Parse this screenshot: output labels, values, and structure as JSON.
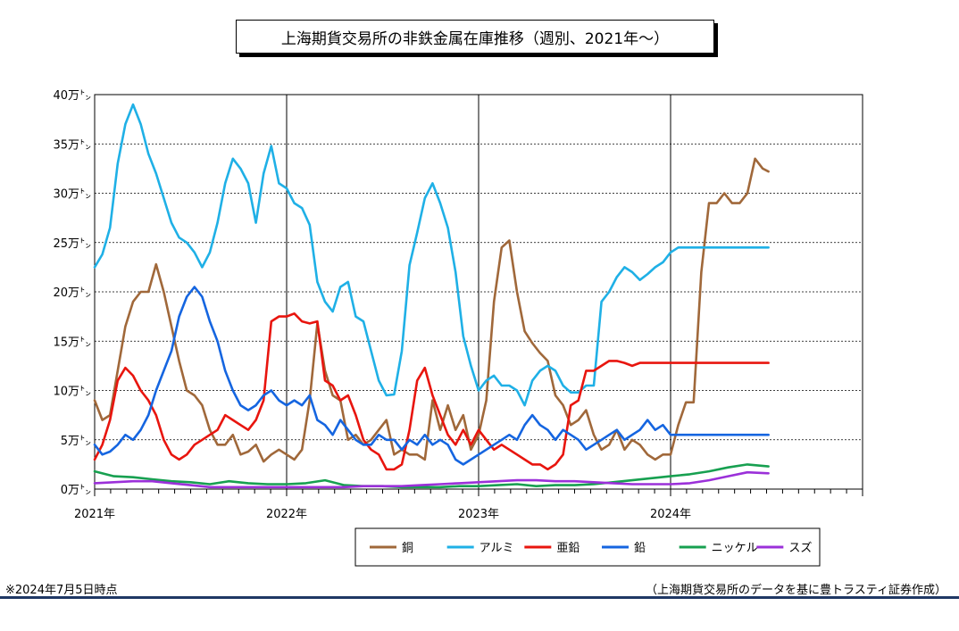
{
  "chart_data": {
    "type": "line",
    "title": "上海期貨交易所の非鉄金属在庫推移（週別、2021年～）",
    "x_labels": [
      "2021年",
      "2022年",
      "2023年",
      "2024年"
    ],
    "x_range": [
      2021.0,
      2025.0
    ],
    "y_ticks": [
      "0万㌧",
      "5万㌧",
      "10万㌧",
      "15万㌧",
      "20万㌧",
      "25万㌧",
      "30万㌧",
      "35万㌧",
      "40万㌧"
    ],
    "ylim": [
      0,
      40
    ],
    "y_unit": "万トン",
    "grid": "horizontal dashed, vertical solid at year boundaries",
    "legend_position": "bottom-right",
    "series": [
      {
        "name": "銅",
        "color": "#a0683a",
        "x": [
          2021.0,
          2021.04,
          2021.08,
          2021.12,
          2021.16,
          2021.2,
          2021.24,
          2021.28,
          2021.32,
          2021.36,
          2021.4,
          2021.44,
          2021.48,
          2021.52,
          2021.56,
          2021.6,
          2021.64,
          2021.68,
          2021.72,
          2021.76,
          2021.8,
          2021.84,
          2021.88,
          2021.92,
          2021.96,
          2022.0,
          2022.04,
          2022.08,
          2022.12,
          2022.16,
          2022.2,
          2022.24,
          2022.28,
          2022.32,
          2022.36,
          2022.4,
          2022.44,
          2022.48,
          2022.52,
          2022.56,
          2022.6,
          2022.64,
          2022.68,
          2022.72,
          2022.76,
          2022.8,
          2022.84,
          2022.88,
          2022.92,
          2022.96,
          2023.0,
          2023.04,
          2023.08,
          2023.12,
          2023.16,
          2023.2,
          2023.24,
          2023.28,
          2023.32,
          2023.36,
          2023.4,
          2023.44,
          2023.48,
          2023.52,
          2023.56,
          2023.6,
          2023.64,
          2023.68,
          2023.72,
          2023.76,
          2023.8,
          2023.84,
          2023.88,
          2023.92,
          2023.96,
          2024.0,
          2024.04,
          2024.08,
          2024.12,
          2024.16,
          2024.2,
          2024.24,
          2024.28,
          2024.32,
          2024.36,
          2024.4,
          2024.44,
          2024.48,
          2024.51
        ],
        "y": [
          9.0,
          7.0,
          7.5,
          12.0,
          16.5,
          19.0,
          20.0,
          20.0,
          22.8,
          20.0,
          16.5,
          13.0,
          10.0,
          9.5,
          8.5,
          6.0,
          4.5,
          4.5,
          5.5,
          3.5,
          3.8,
          4.5,
          2.8,
          3.5,
          4.0,
          3.5,
          3.0,
          4.0,
          9.0,
          16.8,
          12.0,
          9.5,
          9.0,
          5.0,
          5.5,
          4.5,
          5.0,
          6.0,
          7.0,
          3.5,
          4.0,
          3.5,
          3.5,
          3.0,
          9.0,
          6.0,
          8.5,
          6.0,
          7.5,
          4.0,
          5.5,
          9.0,
          19.0,
          24.5,
          25.2,
          20.0,
          16.0,
          14.8,
          13.8,
          13.0,
          9.5,
          8.5,
          6.5,
          7.0,
          8.0,
          5.5,
          4.0,
          4.5,
          6.0,
          4.0,
          5.0,
          4.5,
          3.5,
          3.0,
          3.5,
          3.5,
          6.5,
          8.8,
          8.8,
          22.0,
          29.0,
          29.0,
          30.0,
          29.0,
          29.0,
          30.0,
          33.5,
          32.5,
          32.2
        ]
      },
      {
        "name": "アルミ",
        "color": "#1fb0e6",
        "x": [
          2021.0,
          2021.04,
          2021.08,
          2021.12,
          2021.16,
          2021.2,
          2021.24,
          2021.28,
          2021.32,
          2021.36,
          2021.4,
          2021.44,
          2021.48,
          2021.52,
          2021.56,
          2021.6,
          2021.64,
          2021.68,
          2021.72,
          2021.76,
          2021.8,
          2021.84,
          2021.88,
          2021.92,
          2021.96,
          2022.0,
          2022.04,
          2022.08,
          2022.12,
          2022.16,
          2022.2,
          2022.24,
          2022.28,
          2022.32,
          2022.36,
          2022.4,
          2022.44,
          2022.48,
          2022.52,
          2022.56,
          2022.6,
          2022.64,
          2022.68,
          2022.72,
          2022.76,
          2022.8,
          2022.84,
          2022.88,
          2022.92,
          2022.96,
          2023.0,
          2023.04,
          2023.08,
          2023.12,
          2023.16,
          2023.2,
          2023.24,
          2023.28,
          2023.32,
          2023.36,
          2023.4,
          2023.44,
          2023.48,
          2023.52,
          2023.56,
          2023.6,
          2023.64,
          2023.68,
          2023.72,
          2023.76,
          2023.8,
          2023.84,
          2023.88,
          2023.92,
          2023.96,
          2024.0,
          2024.04,
          2024.08,
          2024.12,
          2024.16,
          2024.2,
          2024.24,
          2024.28,
          2024.32,
          2024.36,
          2024.4,
          2024.44,
          2024.48,
          2024.51
        ],
        "y": [
          22.5,
          23.8,
          26.5,
          33.0,
          37.0,
          39.0,
          37.0,
          34.0,
          32.0,
          29.5,
          27.0,
          25.5,
          25.0,
          24.0,
          22.5,
          24.0,
          27.0,
          31.0,
          33.5,
          32.5,
          31.0,
          27.0,
          32.0,
          34.8,
          31.0,
          30.5,
          29.0,
          28.5,
          26.8,
          21.0,
          19.0,
          18.0,
          20.5,
          21.0,
          17.5,
          17.0,
          14.0,
          11.0,
          9.5,
          9.6,
          14.0,
          22.7,
          26.0,
          29.5,
          31.0,
          29.0,
          26.5,
          22.0,
          15.5,
          12.5,
          10.0,
          11.0,
          11.5,
          10.5,
          10.5,
          10.0,
          8.5,
          11.0,
          12.0,
          12.5,
          12.0,
          10.5,
          9.8,
          9.8,
          10.5,
          10.5,
          19.0,
          20.0,
          21.5,
          22.5,
          22.0,
          21.2,
          21.8,
          22.5,
          23.0,
          24.0,
          24.5,
          24.5,
          24.5,
          24.5,
          24.5,
          24.5,
          24.5,
          24.5,
          24.5,
          24.5,
          24.5,
          24.5,
          24.5
        ]
      },
      {
        "name": "亜鉛",
        "color": "#e8150e",
        "x": [
          2021.0,
          2021.04,
          2021.08,
          2021.12,
          2021.16,
          2021.2,
          2021.24,
          2021.28,
          2021.32,
          2021.36,
          2021.4,
          2021.44,
          2021.48,
          2021.52,
          2021.56,
          2021.6,
          2021.64,
          2021.68,
          2021.72,
          2021.76,
          2021.8,
          2021.84,
          2021.88,
          2021.92,
          2021.96,
          2022.0,
          2022.04,
          2022.08,
          2022.12,
          2022.16,
          2022.2,
          2022.24,
          2022.28,
          2022.32,
          2022.36,
          2022.4,
          2022.44,
          2022.48,
          2022.52,
          2022.56,
          2022.6,
          2022.64,
          2022.68,
          2022.72,
          2022.76,
          2022.8,
          2022.84,
          2022.88,
          2022.92,
          2022.96,
          2023.0,
          2023.04,
          2023.08,
          2023.12,
          2023.16,
          2023.2,
          2023.24,
          2023.28,
          2023.32,
          2023.36,
          2023.4,
          2023.44,
          2023.48,
          2023.52,
          2023.56,
          2023.6,
          2023.64,
          2023.68,
          2023.72,
          2023.76,
          2023.8,
          2023.84,
          2023.88,
          2023.92,
          2023.96,
          2024.0,
          2024.04,
          2024.08,
          2024.12,
          2024.16,
          2024.2,
          2024.24,
          2024.28,
          2024.32,
          2024.36,
          2024.4,
          2024.44,
          2024.48,
          2024.51
        ],
        "y": [
          3.0,
          4.5,
          7.0,
          11.0,
          12.3,
          11.5,
          10.0,
          9.0,
          7.5,
          5.0,
          3.5,
          3.0,
          3.5,
          4.5,
          5.0,
          5.5,
          6.0,
          7.5,
          7.0,
          6.5,
          6.0,
          7.0,
          9.0,
          17.0,
          17.5,
          17.5,
          17.8,
          17.0,
          16.8,
          17.0,
          11.0,
          10.5,
          9.0,
          9.5,
          7.5,
          5.0,
          4.0,
          3.5,
          2.0,
          2.0,
          2.5,
          6.0,
          11.0,
          12.3,
          9.5,
          7.5,
          5.5,
          4.5,
          6.0,
          4.5,
          6.0,
          5.0,
          4.0,
          4.5,
          4.0,
          3.5,
          3.0,
          2.5,
          2.5,
          2.0,
          2.5,
          3.5,
          8.5,
          9.0,
          12.0,
          12.0,
          12.5,
          13.0,
          13.0,
          12.8,
          12.5,
          12.8,
          12.8,
          12.8,
          12.8,
          12.8,
          12.8,
          12.8,
          12.8,
          12.8,
          12.8,
          12.8,
          12.8,
          12.8,
          12.8,
          12.8,
          12.8,
          12.8,
          12.8
        ]
      },
      {
        "name": "鉛",
        "color": "#1565e0",
        "x": [
          2021.0,
          2021.04,
          2021.08,
          2021.12,
          2021.16,
          2021.2,
          2021.24,
          2021.28,
          2021.32,
          2021.36,
          2021.4,
          2021.44,
          2021.48,
          2021.52,
          2021.56,
          2021.6,
          2021.64,
          2021.68,
          2021.72,
          2021.76,
          2021.8,
          2021.84,
          2021.88,
          2021.92,
          2021.96,
          2022.0,
          2022.04,
          2022.08,
          2022.12,
          2022.16,
          2022.2,
          2022.24,
          2022.28,
          2022.32,
          2022.36,
          2022.4,
          2022.44,
          2022.48,
          2022.52,
          2022.56,
          2022.6,
          2022.64,
          2022.68,
          2022.72,
          2022.76,
          2022.8,
          2022.84,
          2022.88,
          2022.92,
          2022.96,
          2023.0,
          2023.04,
          2023.08,
          2023.12,
          2023.16,
          2023.2,
          2023.24,
          2023.28,
          2023.32,
          2023.36,
          2023.4,
          2023.44,
          2023.48,
          2023.52,
          2023.56,
          2023.6,
          2023.64,
          2023.68,
          2023.72,
          2023.76,
          2023.8,
          2023.84,
          2023.88,
          2023.92,
          2023.96,
          2024.0,
          2024.04,
          2024.08,
          2024.12,
          2024.16,
          2024.2,
          2024.24,
          2024.28,
          2024.32,
          2024.36,
          2024.4,
          2024.44,
          2024.48,
          2024.51
        ],
        "y": [
          4.5,
          3.5,
          3.8,
          4.5,
          5.5,
          5.0,
          6.0,
          7.5,
          10.0,
          12.0,
          14.0,
          17.5,
          19.5,
          20.5,
          19.5,
          17.0,
          15.0,
          12.0,
          10.0,
          8.5,
          8.0,
          8.5,
          9.5,
          10.0,
          9.0,
          8.5,
          9.0,
          8.5,
          9.5,
          7.0,
          6.5,
          5.5,
          7.0,
          6.0,
          5.0,
          4.5,
          4.5,
          5.5,
          5.0,
          5.0,
          4.0,
          5.0,
          4.5,
          5.5,
          4.5,
          5.0,
          4.5,
          3.0,
          2.5,
          3.0,
          3.5,
          4.0,
          4.5,
          5.0,
          5.5,
          5.0,
          6.5,
          7.5,
          6.5,
          6.0,
          5.0,
          6.0,
          5.5,
          5.0,
          4.0,
          4.5,
          5.0,
          5.5,
          6.0,
          5.0,
          5.5,
          6.0,
          7.0,
          6.0,
          6.5,
          5.5,
          5.5,
          5.5,
          5.5,
          5.5,
          5.5,
          5.5,
          5.5,
          5.5,
          5.5,
          5.5,
          5.5,
          5.5,
          5.5
        ]
      },
      {
        "name": "ニッケル",
        "color": "#17a050",
        "x": [
          2021.0,
          2021.1,
          2021.2,
          2021.3,
          2021.4,
          2021.5,
          2021.6,
          2021.7,
          2021.8,
          2021.9,
          2022.0,
          2022.1,
          2022.2,
          2022.3,
          2022.4,
          2022.5,
          2022.6,
          2022.7,
          2022.8,
          2022.9,
          2023.0,
          2023.1,
          2023.2,
          2023.3,
          2023.4,
          2023.5,
          2023.6,
          2023.7,
          2023.8,
          2023.9,
          2024.0,
          2024.1,
          2024.2,
          2024.3,
          2024.4,
          2024.51
        ],
        "y": [
          1.8,
          1.3,
          1.2,
          1.0,
          0.8,
          0.7,
          0.5,
          0.8,
          0.6,
          0.5,
          0.5,
          0.6,
          0.9,
          0.4,
          0.3,
          0.3,
          0.2,
          0.2,
          0.2,
          0.3,
          0.3,
          0.4,
          0.5,
          0.3,
          0.4,
          0.4,
          0.5,
          0.7,
          0.9,
          1.1,
          1.3,
          1.5,
          1.8,
          2.2,
          2.5,
          2.3
        ]
      },
      {
        "name": "スズ",
        "color": "#9b30d9",
        "x": [
          2021.0,
          2021.1,
          2021.2,
          2021.3,
          2021.4,
          2021.5,
          2021.6,
          2021.7,
          2021.8,
          2021.9,
          2022.0,
          2022.1,
          2022.2,
          2022.3,
          2022.4,
          2022.5,
          2022.6,
          2022.7,
          2022.8,
          2022.9,
          2023.0,
          2023.1,
          2023.2,
          2023.3,
          2023.4,
          2023.5,
          2023.6,
          2023.7,
          2023.8,
          2023.9,
          2024.0,
          2024.1,
          2024.2,
          2024.3,
          2024.4,
          2024.51
        ],
        "y": [
          0.6,
          0.7,
          0.8,
          0.8,
          0.6,
          0.4,
          0.2,
          0.2,
          0.2,
          0.2,
          0.2,
          0.2,
          0.2,
          0.2,
          0.3,
          0.3,
          0.3,
          0.4,
          0.5,
          0.6,
          0.7,
          0.8,
          0.9,
          0.9,
          0.8,
          0.8,
          0.7,
          0.6,
          0.5,
          0.5,
          0.5,
          0.6,
          0.9,
          1.3,
          1.7,
          1.6
        ]
      }
    ]
  },
  "notes": {
    "as_of": "※2024年7月5日時点",
    "source": "（上海期貨交易所のデータを基に豊トラスティ証券作成）"
  }
}
